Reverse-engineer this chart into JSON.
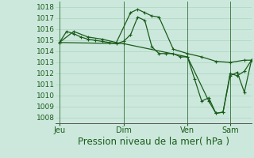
{
  "bg_color": "#cce8dc",
  "grid_color": "#aad4c0",
  "line_color": "#1a5c1a",
  "xlabel": "Pression niveau de la mer( hPa )",
  "xlabel_fontsize": 8.5,
  "ylabel_fontsize": 6.5,
  "tick_fontsize": 7,
  "ylim": [
    1007.5,
    1018.5
  ],
  "yticks": [
    1008,
    1009,
    1010,
    1011,
    1012,
    1013,
    1014,
    1015,
    1016,
    1017,
    1018
  ],
  "day_labels": [
    "Jeu",
    "Dim",
    "Ven",
    "Sam"
  ],
  "day_positions": [
    0,
    9,
    18,
    24
  ],
  "xlim": [
    -0.5,
    27
  ],
  "series1_x": [
    0,
    1,
    2,
    3,
    4,
    5,
    6,
    7,
    8,
    9,
    10,
    11,
    12,
    13,
    14,
    15,
    16,
    17,
    18,
    19,
    20,
    21,
    22,
    23,
    24,
    25,
    26,
    27
  ],
  "series1_y": [
    1014.8,
    1015.8,
    1015.6,
    1015.3,
    1015.1,
    1015.0,
    1014.9,
    1014.8,
    1014.7,
    1014.9,
    1015.5,
    1017.1,
    1016.8,
    1014.4,
    1013.8,
    1013.8,
    1013.8,
    1013.5,
    1013.5,
    1011.5,
    1009.5,
    1009.8,
    1008.4,
    1008.5,
    1012.0,
    1011.8,
    1012.2,
    1013.2
  ],
  "series2_x": [
    0,
    2,
    4,
    6,
    8,
    10,
    11,
    12,
    13,
    14,
    16,
    18,
    20,
    22,
    24,
    26,
    27
  ],
  "series2_y": [
    1014.8,
    1015.8,
    1015.3,
    1015.1,
    1014.8,
    1017.5,
    1017.8,
    1017.5,
    1017.2,
    1017.1,
    1014.2,
    1013.8,
    1013.5,
    1013.1,
    1013.0,
    1013.2,
    1013.2
  ],
  "series3_x": [
    0,
    9,
    18,
    21,
    22,
    23,
    24,
    25,
    26,
    27
  ],
  "series3_y": [
    1014.8,
    1014.7,
    1013.5,
    1009.5,
    1008.4,
    1008.5,
    1011.8,
    1012.1,
    1010.3,
    1013.2
  ]
}
